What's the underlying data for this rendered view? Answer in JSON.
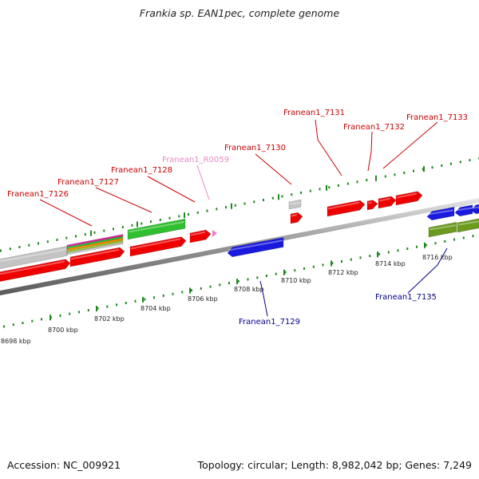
{
  "title": "Frankia sp. EAN1pec, complete genome",
  "footer": {
    "accession": "Accession: NC_009921",
    "summary": "Topology: circular; Length: 8,982,042 bp; Genes: 7,249"
  },
  "colors": {
    "forward_gene": "#ee0000",
    "reverse_gene": "#1a1adf",
    "rna": "#f07ac8",
    "grey_feature": "#c4c4c4",
    "green_feature": "#2fbf2f",
    "olive_feature": "#6b9a1f",
    "tick": "#1e8a1e",
    "label_forward": "#cc0000",
    "label_reverse": "#00008b",
    "label_rna": "#e88ac4"
  },
  "scale_labels": [
    "8698 kbp",
    "8700 kbp",
    "8702 kbp",
    "8704 kbp",
    "8706 kbp",
    "8708 kbp",
    "8710 kbp",
    "8712 kbp",
    "8714 kbp",
    "8716 kbp"
  ],
  "gene_labels": [
    {
      "text": "Franean1_7126",
      "strand": "forward"
    },
    {
      "text": "Franean1_7127",
      "strand": "forward"
    },
    {
      "text": "Franean1_7128",
      "strand": "forward"
    },
    {
      "text": "Franean1_R0059",
      "strand": "rna"
    },
    {
      "text": "Franean1_7130",
      "strand": "forward"
    },
    {
      "text": "Franean1_7131",
      "strand": "forward"
    },
    {
      "text": "Franean1_7132",
      "strand": "forward"
    },
    {
      "text": "Franean1_7133",
      "strand": "forward"
    },
    {
      "text": "Franean1_7129",
      "strand": "reverse"
    },
    {
      "text": "Franean1_7135",
      "strand": "reverse"
    }
  ]
}
